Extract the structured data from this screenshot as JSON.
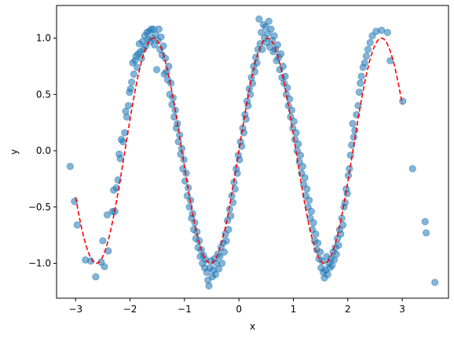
{
  "chart_data": {
    "type": "scatter",
    "title": "",
    "xlabel": "x",
    "ylabel": "y",
    "xlim": [
      -3.35,
      3.85
    ],
    "ylim": [
      -1.31,
      1.29
    ],
    "xticks": [
      -3,
      -2,
      -1,
      0,
      1,
      2,
      3
    ],
    "yticks": [
      -1.0,
      -0.5,
      0.0,
      0.5,
      1.0
    ],
    "xtick_labels": [
      "−3",
      "−2",
      "−1",
      "0",
      "1",
      "2",
      "3"
    ],
    "ytick_labels": [
      "−1.0",
      "−0.5",
      "0.0",
      "0.5",
      "1.0"
    ],
    "grid": false,
    "legend": "none",
    "series": [
      {
        "kind": "scatter",
        "color": "#1f77b4",
        "opacity": 0.55,
        "points": [
          [
            -3.1,
            -0.14
          ],
          [
            -3.02,
            -0.45
          ],
          [
            -2.97,
            -0.66
          ],
          [
            -2.82,
            -0.97
          ],
          [
            -2.72,
            -0.98
          ],
          [
            -2.63,
            -1.12
          ],
          [
            -2.53,
            -0.99
          ],
          [
            -2.5,
            -0.8
          ],
          [
            -2.47,
            -1.03
          ],
          [
            -2.42,
            -0.57
          ],
          [
            -2.4,
            -0.89
          ],
          [
            -2.32,
            -0.54
          ],
          [
            -2.3,
            -0.35
          ],
          [
            -2.28,
            -0.54
          ],
          [
            -2.25,
            -0.33
          ],
          [
            -2.22,
            -0.26
          ],
          [
            -2.2,
            -0.03
          ],
          [
            -2.18,
            -0.07
          ],
          [
            -2.16,
            0.1
          ],
          [
            -2.13,
            0.08
          ],
          [
            -2.1,
            0.16
          ],
          [
            -2.08,
            0.35
          ],
          [
            -2.06,
            0.3
          ],
          [
            -2.03,
            0.4
          ],
          [
            -2.01,
            0.52
          ],
          [
            -1.99,
            0.55
          ],
          [
            -1.97,
            0.61
          ],
          [
            -1.95,
            0.78
          ],
          [
            -1.93,
            0.68
          ],
          [
            -1.91,
            0.8
          ],
          [
            -1.89,
            0.84
          ],
          [
            -1.87,
            0.74
          ],
          [
            -1.85,
            0.86
          ],
          [
            -1.83,
            0.95
          ],
          [
            -1.81,
            0.88
          ],
          [
            -1.79,
            0.82
          ],
          [
            -1.77,
            0.97
          ],
          [
            -1.75,
            0.9
          ],
          [
            -1.73,
            1.02
          ],
          [
            -1.71,
            0.93
          ],
          [
            -1.69,
            1.05
          ],
          [
            -1.67,
            0.99
          ],
          [
            -1.65,
            1.06
          ],
          [
            -1.63,
            0.97
          ],
          [
            -1.61,
            1.08
          ],
          [
            -1.59,
            1.0
          ],
          [
            -1.57,
            1.08
          ],
          [
            -1.55,
            0.94
          ],
          [
            -1.53,
            1.03
          ],
          [
            -1.51,
            0.72
          ],
          [
            -1.49,
            0.98
          ],
          [
            -1.47,
            1.08
          ],
          [
            -1.45,
            0.9
          ],
          [
            -1.43,
            1.01
          ],
          [
            -1.41,
            0.85
          ],
          [
            -1.39,
            0.93
          ],
          [
            -1.37,
            0.68
          ],
          [
            -1.35,
            0.82
          ],
          [
            -1.33,
            0.7
          ],
          [
            -1.31,
            0.63
          ],
          [
            -1.29,
            0.75
          ],
          [
            -1.27,
            0.5
          ],
          [
            -1.25,
            0.6
          ],
          [
            -1.23,
            0.41
          ],
          [
            -1.21,
            0.47
          ],
          [
            -1.19,
            0.3
          ],
          [
            -1.17,
            0.36
          ],
          [
            -1.15,
            0.2
          ],
          [
            -1.13,
            0.24
          ],
          [
            -1.11,
            0.08
          ],
          [
            -1.09,
            0.14
          ],
          [
            -1.07,
            -0.03
          ],
          [
            -1.05,
            0.02
          ],
          [
            -1.03,
            -0.16
          ],
          [
            -1.01,
            -0.08
          ],
          [
            -0.99,
            -0.27
          ],
          [
            -0.97,
            -0.2
          ],
          [
            -0.95,
            -0.4
          ],
          [
            -0.93,
            -0.33
          ],
          [
            -0.91,
            -0.5
          ],
          [
            -0.89,
            -0.44
          ],
          [
            -0.87,
            -0.6
          ],
          [
            -0.85,
            -0.56
          ],
          [
            -0.83,
            -0.7
          ],
          [
            -0.81,
            -0.64
          ],
          [
            -0.79,
            -0.78
          ],
          [
            -0.77,
            -0.72
          ],
          [
            -0.75,
            -0.86
          ],
          [
            -0.73,
            -0.8
          ],
          [
            -0.71,
            -0.94
          ],
          [
            -0.69,
            -0.88
          ],
          [
            -0.67,
            -1.0
          ],
          [
            -0.65,
            -0.93
          ],
          [
            -0.63,
            -1.04
          ],
          [
            -0.61,
            -0.97
          ],
          [
            -0.59,
            -1.08
          ],
          [
            -0.57,
            -1.15
          ],
          [
            -0.55,
            -1.2
          ],
          [
            -0.53,
            -1.04
          ],
          [
            -0.51,
            -0.98
          ],
          [
            -0.49,
            -1.12
          ],
          [
            -0.47,
            -1.06
          ],
          [
            -0.45,
            -0.96
          ],
          [
            -0.43,
            -1.1
          ],
          [
            -0.41,
            -1.0
          ],
          [
            -0.39,
            -0.92
          ],
          [
            -0.37,
            -1.05
          ],
          [
            -0.35,
            -0.94
          ],
          [
            -0.33,
            -0.86
          ],
          [
            -0.31,
            -1.0
          ],
          [
            -0.29,
            -0.82
          ],
          [
            -0.27,
            -0.9
          ],
          [
            -0.25,
            -0.74
          ],
          [
            -0.23,
            -0.8
          ],
          [
            -0.21,
            -0.62
          ],
          [
            -0.19,
            -0.7
          ],
          [
            -0.17,
            -0.52
          ],
          [
            -0.15,
            -0.58
          ],
          [
            -0.13,
            -0.4
          ],
          [
            -0.11,
            -0.46
          ],
          [
            -0.09,
            -0.28
          ],
          [
            -0.07,
            -0.34
          ],
          [
            -0.05,
            -0.16
          ],
          [
            -0.03,
            -0.2
          ],
          [
            -0.01,
            -0.04
          ],
          [
            0.01,
            -0.08
          ],
          [
            0.03,
            0.08
          ],
          [
            0.05,
            0.04
          ],
          [
            0.07,
            0.2
          ],
          [
            0.09,
            0.16
          ],
          [
            0.11,
            0.32
          ],
          [
            0.13,
            0.28
          ],
          [
            0.15,
            0.44
          ],
          [
            0.17,
            0.4
          ],
          [
            0.19,
            0.55
          ],
          [
            0.21,
            0.5
          ],
          [
            0.23,
            0.65
          ],
          [
            0.25,
            0.6
          ],
          [
            0.27,
            0.75
          ],
          [
            0.29,
            0.7
          ],
          [
            0.31,
            0.83
          ],
          [
            0.33,
            0.78
          ],
          [
            0.35,
            0.9
          ],
          [
            0.37,
            1.17
          ],
          [
            0.39,
            0.95
          ],
          [
            0.41,
            1.05
          ],
          [
            0.43,
            0.9
          ],
          [
            0.45,
            1.12
          ],
          [
            0.47,
            1.0
          ],
          [
            0.49,
            1.1
          ],
          [
            0.51,
            0.96
          ],
          [
            0.53,
            1.04
          ],
          [
            0.55,
            1.15
          ],
          [
            0.57,
            0.92
          ],
          [
            0.59,
            1.08
          ],
          [
            0.61,
            0.98
          ],
          [
            0.63,
            0.88
          ],
          [
            0.65,
            1.02
          ],
          [
            0.67,
            0.9
          ],
          [
            0.69,
            0.8
          ],
          [
            0.71,
            0.94
          ],
          [
            0.73,
            0.83
          ],
          [
            0.75,
            0.72
          ],
          [
            0.77,
            0.86
          ],
          [
            0.79,
            0.65
          ],
          [
            0.81,
            0.75
          ],
          [
            0.83,
            0.6
          ],
          [
            0.85,
            0.66
          ],
          [
            0.87,
            0.5
          ],
          [
            0.89,
            0.56
          ],
          [
            0.91,
            0.4
          ],
          [
            0.93,
            0.46
          ],
          [
            0.95,
            0.3
          ],
          [
            0.97,
            0.36
          ],
          [
            0.99,
            0.2
          ],
          [
            1.01,
            0.26
          ],
          [
            1.03,
            0.1
          ],
          [
            1.05,
            0.16
          ],
          [
            1.07,
            0.0
          ],
          [
            1.09,
            0.06
          ],
          [
            1.11,
            -0.1
          ],
          [
            1.13,
            -0.04
          ],
          [
            1.15,
            -0.2
          ],
          [
            1.17,
            -0.14
          ],
          [
            1.19,
            -0.3
          ],
          [
            1.21,
            -0.24
          ],
          [
            1.23,
            -0.4
          ],
          [
            1.25,
            -0.34
          ],
          [
            1.27,
            -0.5
          ],
          [
            1.29,
            -0.44
          ],
          [
            1.31,
            -0.6
          ],
          [
            1.33,
            -0.54
          ],
          [
            1.35,
            -0.7
          ],
          [
            1.37,
            -0.64
          ],
          [
            1.39,
            -0.8
          ],
          [
            1.41,
            -0.74
          ],
          [
            1.43,
            -0.88
          ],
          [
            1.45,
            -0.82
          ],
          [
            1.47,
            -0.96
          ],
          [
            1.49,
            -0.9
          ],
          [
            1.51,
            -1.04
          ],
          [
            1.53,
            -0.98
          ],
          [
            1.55,
            -1.08
          ],
          [
            1.57,
            -1.13
          ],
          [
            1.59,
            -1.06
          ],
          [
            1.61,
            -0.94
          ],
          [
            1.63,
            -1.1
          ],
          [
            1.65,
            -1.0
          ],
          [
            1.67,
            -1.04
          ],
          [
            1.69,
            -0.96
          ],
          [
            1.71,
            -1.02
          ],
          [
            1.73,
            -0.9
          ],
          [
            1.75,
            -0.97
          ],
          [
            1.77,
            -0.86
          ],
          [
            1.79,
            -0.92
          ],
          [
            1.81,
            -0.78
          ],
          [
            1.83,
            -0.84
          ],
          [
            1.85,
            -0.7
          ],
          [
            1.87,
            -0.74
          ],
          [
            1.89,
            -0.6
          ],
          [
            1.91,
            -0.66
          ],
          [
            1.93,
            -0.5
          ],
          [
            1.95,
            -0.46
          ],
          [
            1.97,
            -0.34
          ],
          [
            1.99,
            -0.38
          ],
          [
            2.01,
            -0.22
          ],
          [
            2.03,
            -0.16
          ],
          [
            2.05,
            -0.04
          ],
          [
            2.07,
            0.05
          ],
          [
            2.09,
            0.24
          ],
          [
            2.11,
            0.12
          ],
          [
            2.13,
            0.18
          ],
          [
            2.16,
            0.32
          ],
          [
            2.19,
            0.4
          ],
          [
            2.21,
            0.52
          ],
          [
            2.23,
            0.6
          ],
          [
            2.25,
            0.66
          ],
          [
            2.28,
            0.74
          ],
          [
            2.31,
            0.78
          ],
          [
            2.34,
            0.84
          ],
          [
            2.37,
            0.9
          ],
          [
            2.41,
            0.96
          ],
          [
            2.45,
            1.02
          ],
          [
            2.52,
            1.06
          ],
          [
            2.62,
            1.07
          ],
          [
            2.73,
            1.05
          ],
          [
            2.78,
            0.8
          ],
          [
            3.01,
            0.44
          ],
          [
            3.19,
            -0.16
          ],
          [
            3.42,
            -0.63
          ],
          [
            3.44,
            -0.73
          ],
          [
            3.6,
            -1.17
          ]
        ]
      },
      {
        "kind": "line",
        "style": "dashed",
        "color": "#ff0000",
        "function": "y = sin(3x)",
        "x_range": [
          -3.0,
          3.0
        ]
      }
    ]
  }
}
